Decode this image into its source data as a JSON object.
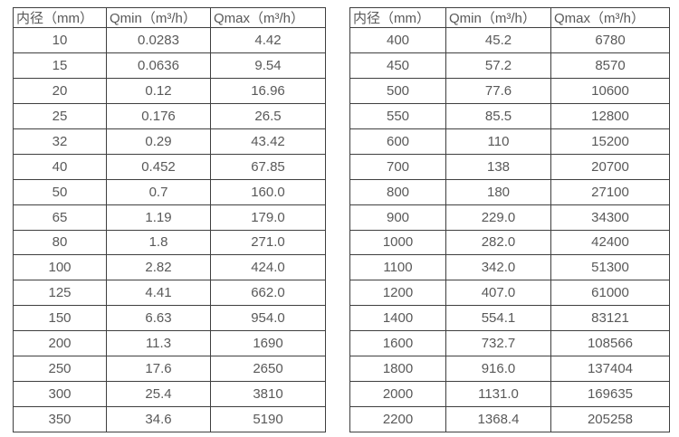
{
  "colors": {
    "background": "#ffffff",
    "text": "#595959",
    "border": "#3f3f3f"
  },
  "tables": [
    {
      "name": "flow-spec-table-small-diameters",
      "headers": [
        "内径（mm）",
        "Qmin（m³/h）",
        "Qmax（m³/h）"
      ],
      "rows": [
        [
          "10",
          "0.0283",
          "4.42"
        ],
        [
          "15",
          "0.0636",
          "9.54"
        ],
        [
          "20",
          "0.12",
          "16.96"
        ],
        [
          "25",
          "0.176",
          "26.5"
        ],
        [
          "32",
          "0.29",
          "43.42"
        ],
        [
          "40",
          "0.452",
          "67.85"
        ],
        [
          "50",
          "0.7",
          "160.0"
        ],
        [
          "65",
          "1.19",
          "179.0"
        ],
        [
          "80",
          "1.8",
          "271.0"
        ],
        [
          "100",
          "2.82",
          "424.0"
        ],
        [
          "125",
          "4.41",
          "662.0"
        ],
        [
          "150",
          "6.63",
          "954.0"
        ],
        [
          "200",
          "11.3",
          "1690"
        ],
        [
          "250",
          "17.6",
          "2650"
        ],
        [
          "300",
          "25.4",
          "3810"
        ],
        [
          "350",
          "34.6",
          "5190"
        ]
      ]
    },
    {
      "name": "flow-spec-table-large-diameters",
      "headers": [
        "内径（mm）",
        "Qmin（m³/h）",
        "Qmax（m³/h）"
      ],
      "rows": [
        [
          "400",
          "45.2",
          "6780"
        ],
        [
          "450",
          "57.2",
          "8570"
        ],
        [
          "500",
          "77.6",
          "10600"
        ],
        [
          "550",
          "85.5",
          "12800"
        ],
        [
          "600",
          "110",
          "15200"
        ],
        [
          "700",
          "138",
          "20700"
        ],
        [
          "800",
          "180",
          "27100"
        ],
        [
          "900",
          "229.0",
          "34300"
        ],
        [
          "1000",
          "282.0",
          "42400"
        ],
        [
          "1100",
          "342.0",
          "51300"
        ],
        [
          "1200",
          "407.0",
          "61000"
        ],
        [
          "1400",
          "554.1",
          "83121"
        ],
        [
          "1600",
          "732.7",
          "108566"
        ],
        [
          "1800",
          "916.0",
          "137404"
        ],
        [
          "2000",
          "1131.0",
          "169635"
        ],
        [
          "2200",
          "1368.4",
          "205258"
        ]
      ]
    }
  ]
}
